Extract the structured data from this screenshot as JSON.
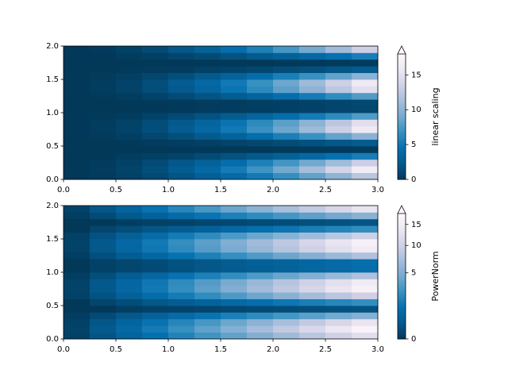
{
  "chart_data": [
    {
      "type": "heatmap",
      "norm": "linear",
      "x": [
        0.125,
        0.375,
        0.625,
        0.875,
        1.125,
        1.375,
        1.625,
        1.875,
        2.125,
        2.375,
        2.625,
        2.875
      ],
      "y": [
        0.05,
        0.15,
        0.25,
        0.35,
        0.45,
        0.55,
        0.65,
        0.75,
        0.85,
        0.95,
        1.05,
        1.15,
        1.25,
        1.35,
        1.45,
        1.55,
        1.65,
        1.75,
        1.85,
        1.95
      ],
      "z": [
        [
          0.02,
          0.21,
          0.58,
          1.13,
          1.87,
          2.8,
          3.91,
          5.2,
          6.68,
          8.34,
          10.19,
          12.22
        ],
        [
          0.03,
          0.28,
          0.78,
          1.53,
          2.53,
          3.78,
          5.27,
          7.02,
          9.02,
          11.26,
          13.76,
          16.51
        ],
        [
          0.02,
          0.22,
          0.62,
          1.22,
          2.02,
          3.02,
          4.22,
          5.62,
          7.22,
          9.01,
          11.01,
          13.21
        ],
        [
          0.01,
          0.09,
          0.25,
          0.5,
          0.82,
          1.23,
          1.71,
          2.28,
          2.93,
          3.66,
          4.47,
          5.36
        ],
        [
          0.0,
          0.0,
          0.01,
          0.02,
          0.03,
          0.04,
          0.06,
          0.08,
          0.1,
          0.12,
          0.15,
          0.18
        ],
        [
          0.0,
          0.04,
          0.11,
          0.23,
          0.37,
          0.56,
          0.78,
          1.03,
          1.33,
          1.66,
          2.03,
          2.43
        ],
        [
          0.02,
          0.17,
          0.47,
          0.93,
          1.54,
          2.3,
          3.21,
          4.27,
          5.49,
          6.85,
          8.37,
          10.04
        ],
        [
          0.03,
          0.27,
          0.76,
          1.48,
          2.45,
          3.66,
          5.12,
          6.81,
          8.75,
          10.93,
          13.35,
          16.02
        ],
        [
          0.03,
          0.25,
          0.7,
          1.38,
          2.28,
          3.4,
          4.75,
          6.32,
          8.12,
          10.14,
          12.39,
          14.86
        ],
        [
          0.01,
          0.13,
          0.36,
          0.71,
          1.17,
          1.75,
          2.44,
          3.25,
          4.18,
          5.22,
          6.37,
          7.65
        ],
        [
          0.0,
          0.02,
          0.05,
          0.09,
          0.15,
          0.23,
          0.32,
          0.42,
          0.54,
          0.68,
          0.83,
          0.99
        ],
        [
          0.0,
          0.02,
          0.05,
          0.1,
          0.16,
          0.24,
          0.33,
          0.44,
          0.56,
          0.71,
          0.86,
          1.03
        ],
        [
          0.01,
          0.13,
          0.36,
          0.72,
          1.18,
          1.77,
          2.47,
          3.28,
          4.22,
          5.27,
          6.44,
          7.72
        ],
        [
          0.03,
          0.25,
          0.7,
          1.38,
          2.28,
          3.41,
          4.76,
          6.34,
          8.15,
          10.18,
          12.43,
          14.91
        ],
        [
          0.03,
          0.27,
          0.76,
          1.48,
          2.45,
          3.66,
          5.11,
          6.8,
          8.74,
          10.91,
          13.33,
          15.99
        ],
        [
          0.02,
          0.17,
          0.47,
          0.92,
          1.53,
          2.28,
          3.19,
          4.24,
          5.45,
          6.81,
          8.32,
          9.98
        ],
        [
          0.0,
          0.04,
          0.11,
          0.22,
          0.36,
          0.54,
          0.76,
          1.01,
          1.3,
          1.62,
          1.98,
          2.38
        ],
        [
          0.0,
          0.0,
          0.01,
          0.02,
          0.03,
          0.05,
          0.06,
          0.08,
          0.11,
          0.14,
          0.17,
          0.2
        ],
        [
          0.01,
          0.09,
          0.26,
          0.5,
          0.83,
          1.24,
          1.74,
          2.31,
          2.97,
          3.71,
          4.53,
          5.44
        ],
        [
          0.03,
          0.23,
          0.63,
          1.23,
          2.03,
          3.04,
          4.24,
          5.65,
          7.25,
          9.06,
          11.07,
          13.27
        ]
      ],
      "xlim": [
        0,
        3
      ],
      "ylim": [
        0,
        2
      ],
      "xticks": [
        {
          "value": 0,
          "label": "0.0"
        },
        {
          "value": 0.5,
          "label": "0.5"
        },
        {
          "value": 1,
          "label": "1.0"
        },
        {
          "value": 1.5,
          "label": "1.5"
        },
        {
          "value": 2,
          "label": "2.0"
        },
        {
          "value": 2.5,
          "label": "2.5"
        },
        {
          "value": 3,
          "label": "3.0"
        }
      ],
      "yticks": [
        {
          "value": 0,
          "label": "0.0"
        },
        {
          "value": 0.5,
          "label": "0.5"
        },
        {
          "value": 1,
          "label": "1.0"
        },
        {
          "value": 1.5,
          "label": "1.5"
        },
        {
          "value": 2,
          "label": "2.0"
        }
      ],
      "colormap": [
        "#023858",
        "#045a8d",
        "#0570b0",
        "#3690c0",
        "#74a9cf",
        "#a6bddb",
        "#d0d1e6",
        "#ece7f2",
        "#fff7fb"
      ],
      "clim": [
        0,
        18
      ],
      "cticks": [
        0,
        5,
        10,
        15
      ],
      "colorbar_label": "linear scaling",
      "colorbar_extend": "max"
    },
    {
      "type": "heatmap",
      "norm": "power",
      "gamma": 0.5,
      "x": [
        0.125,
        0.375,
        0.625,
        0.875,
        1.125,
        1.375,
        1.625,
        1.875,
        2.125,
        2.375,
        2.625,
        2.875
      ],
      "y": [
        0.05,
        0.15,
        0.25,
        0.35,
        0.45,
        0.55,
        0.65,
        0.75,
        0.85,
        0.95,
        1.05,
        1.15,
        1.25,
        1.35,
        1.45,
        1.55,
        1.65,
        1.75,
        1.85,
        1.95
      ],
      "z": [
        [
          0.02,
          0.21,
          0.58,
          1.13,
          1.87,
          2.8,
          3.91,
          5.2,
          6.68,
          8.34,
          10.19,
          12.22
        ],
        [
          0.03,
          0.28,
          0.78,
          1.53,
          2.53,
          3.78,
          5.27,
          7.02,
          9.02,
          11.26,
          13.76,
          16.51
        ],
        [
          0.02,
          0.22,
          0.62,
          1.22,
          2.02,
          3.02,
          4.22,
          5.62,
          7.22,
          9.01,
          11.01,
          13.21
        ],
        [
          0.01,
          0.09,
          0.25,
          0.5,
          0.82,
          1.23,
          1.71,
          2.28,
          2.93,
          3.66,
          4.47,
          5.36
        ],
        [
          0.0,
          0.0,
          0.01,
          0.02,
          0.03,
          0.04,
          0.06,
          0.08,
          0.1,
          0.12,
          0.15,
          0.18
        ],
        [
          0.0,
          0.04,
          0.11,
          0.23,
          0.37,
          0.56,
          0.78,
          1.03,
          1.33,
          1.66,
          2.03,
          2.43
        ],
        [
          0.02,
          0.17,
          0.47,
          0.93,
          1.54,
          2.3,
          3.21,
          4.27,
          5.49,
          6.85,
          8.37,
          10.04
        ],
        [
          0.03,
          0.27,
          0.76,
          1.48,
          2.45,
          3.66,
          5.12,
          6.81,
          8.75,
          10.93,
          13.35,
          16.02
        ],
        [
          0.03,
          0.25,
          0.7,
          1.38,
          2.28,
          3.4,
          4.75,
          6.32,
          8.12,
          10.14,
          12.39,
          14.86
        ],
        [
          0.01,
          0.13,
          0.36,
          0.71,
          1.17,
          1.75,
          2.44,
          3.25,
          4.18,
          5.22,
          6.37,
          7.65
        ],
        [
          0.0,
          0.02,
          0.05,
          0.09,
          0.15,
          0.23,
          0.32,
          0.42,
          0.54,
          0.68,
          0.83,
          0.99
        ],
        [
          0.0,
          0.02,
          0.05,
          0.1,
          0.16,
          0.24,
          0.33,
          0.44,
          0.56,
          0.71,
          0.86,
          1.03
        ],
        [
          0.01,
          0.13,
          0.36,
          0.72,
          1.18,
          1.77,
          2.47,
          3.28,
          4.22,
          5.27,
          6.44,
          7.72
        ],
        [
          0.03,
          0.25,
          0.7,
          1.38,
          2.28,
          3.41,
          4.76,
          6.34,
          8.15,
          10.18,
          12.43,
          14.91
        ],
        [
          0.03,
          0.27,
          0.76,
          1.48,
          2.45,
          3.66,
          5.11,
          6.8,
          8.74,
          10.91,
          13.33,
          15.99
        ],
        [
          0.02,
          0.17,
          0.47,
          0.92,
          1.53,
          2.28,
          3.19,
          4.24,
          5.45,
          6.81,
          8.32,
          9.98
        ],
        [
          0.0,
          0.04,
          0.11,
          0.22,
          0.36,
          0.54,
          0.76,
          1.01,
          1.3,
          1.62,
          1.98,
          2.38
        ],
        [
          0.0,
          0.0,
          0.01,
          0.02,
          0.03,
          0.05,
          0.06,
          0.08,
          0.11,
          0.14,
          0.17,
          0.2
        ],
        [
          0.01,
          0.09,
          0.26,
          0.5,
          0.83,
          1.24,
          1.74,
          2.31,
          2.97,
          3.71,
          4.53,
          5.44
        ],
        [
          0.03,
          0.23,
          0.63,
          1.23,
          2.03,
          3.04,
          4.24,
          5.65,
          7.25,
          9.06,
          11.07,
          13.27
        ]
      ],
      "xlim": [
        0,
        3
      ],
      "ylim": [
        0,
        2
      ],
      "xticks": [
        {
          "value": 0,
          "label": "0.0"
        },
        {
          "value": 0.5,
          "label": "0.5"
        },
        {
          "value": 1,
          "label": "1.0"
        },
        {
          "value": 1.5,
          "label": "1.5"
        },
        {
          "value": 2,
          "label": "2.0"
        },
        {
          "value": 2.5,
          "label": "2.5"
        },
        {
          "value": 3,
          "label": "3.0"
        }
      ],
      "yticks": [
        {
          "value": 0,
          "label": "0.0"
        },
        {
          "value": 0.5,
          "label": "0.5"
        },
        {
          "value": 1,
          "label": "1.0"
        },
        {
          "value": 1.5,
          "label": "1.5"
        },
        {
          "value": 2,
          "label": "2.0"
        }
      ],
      "colormap": [
        "#023858",
        "#045a8d",
        "#0570b0",
        "#3690c0",
        "#74a9cf",
        "#a6bddb",
        "#d0d1e6",
        "#ece7f2",
        "#fff7fb"
      ],
      "clim": [
        0,
        18
      ],
      "cticks": [
        0,
        5,
        10,
        15
      ],
      "colorbar_label": "PowerNorm",
      "colorbar_extend": "max"
    }
  ]
}
